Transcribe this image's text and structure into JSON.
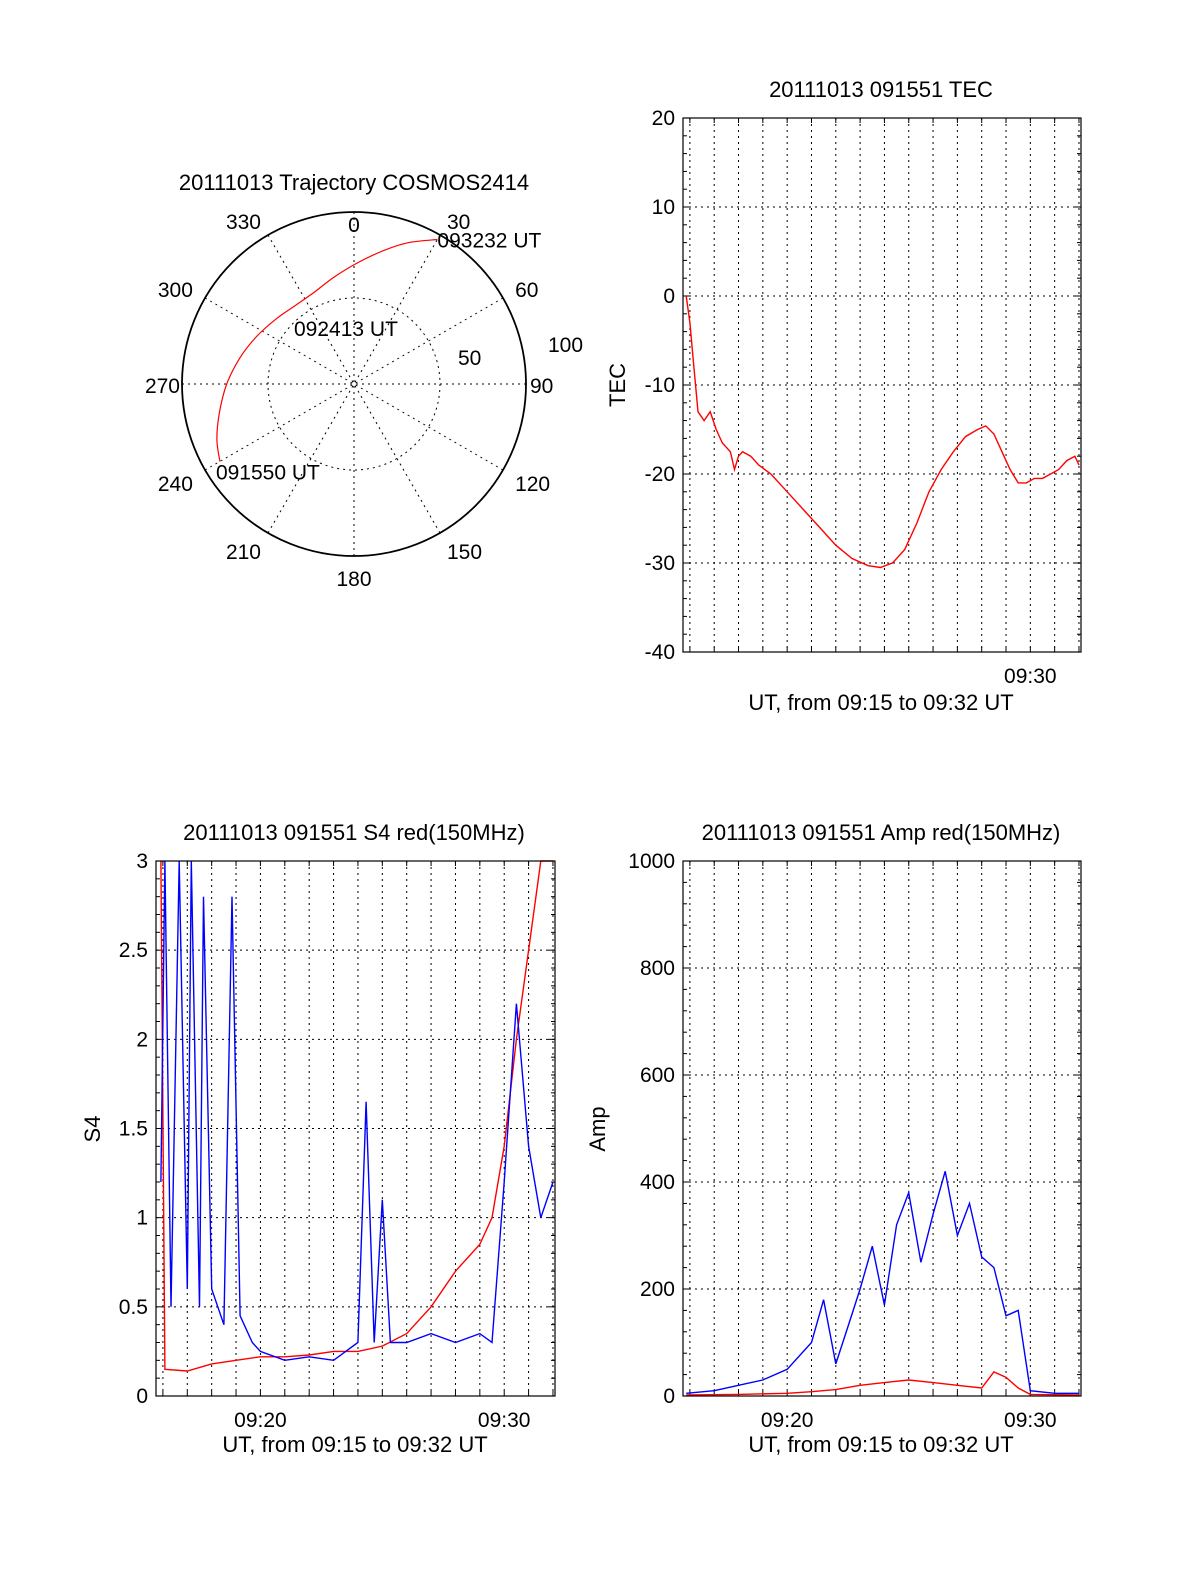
{
  "colors": {
    "red": "#ff0000",
    "blue": "#0000ff",
    "axis": "#000000",
    "background": "#ffffff"
  },
  "chart_data": [
    {
      "type": "polar",
      "title": "20111013 Trajectory COSMOS2414",
      "azimuth_labels": [
        "0",
        "30",
        "60",
        "90",
        "120",
        "150",
        "180",
        "210",
        "240",
        "270",
        "300",
        "330"
      ],
      "radial_labels": [
        "50",
        "100"
      ],
      "rlim": [
        0,
        100
      ],
      "grid": true,
      "trajectory": {
        "color": "#ff0000",
        "start": {
          "azimuth": 240,
          "r": 90,
          "label": "091550 UT"
        },
        "end": {
          "azimuth": 30,
          "r": 97,
          "label": "093232 UT"
        },
        "midpoint_label": "092413 UT",
        "points": [
          [
            240,
            90
          ],
          [
            248,
            86
          ],
          [
            258,
            80
          ],
          [
            270,
            74
          ],
          [
            283,
            68
          ],
          [
            296,
            63
          ],
          [
            310,
            59
          ],
          [
            323,
            57
          ],
          [
            336,
            58
          ],
          [
            349,
            63
          ],
          [
            1,
            70
          ],
          [
            12,
            79
          ],
          [
            21,
            88
          ],
          [
            30,
            97
          ]
        ]
      }
    },
    {
      "type": "line",
      "title": "20111013 091551 TEC",
      "xlabel": "UT, from 09:15 to 09:32 UT",
      "ylabel": "TEC",
      "xlim": [
        "09:15",
        "09:32"
      ],
      "ylim": [
        -40,
        20
      ],
      "yticks": [
        20,
        10,
        0,
        -10,
        -20,
        -30,
        -40
      ],
      "xtick_labels": [
        {
          "t": "09:30",
          "label": "09:30"
        }
      ],
      "grid": true,
      "series": [
        {
          "color": "#ff0000",
          "points": [
            [
              "09:15:51",
              0
            ],
            [
              "09:16:00",
              -3
            ],
            [
              "09:16:10",
              -8
            ],
            [
              "09:16:20",
              -13
            ],
            [
              "09:16:35",
              -14
            ],
            [
              "09:16:50",
              -13
            ],
            [
              "09:17:05",
              -15
            ],
            [
              "09:17:20",
              -16.5
            ],
            [
              "09:17:40",
              -17.5
            ],
            [
              "09:17:50",
              -19.5
            ],
            [
              "09:18:00",
              -18
            ],
            [
              "09:18:10",
              -17.5
            ],
            [
              "09:18:30",
              -18
            ],
            [
              "09:18:50",
              -19
            ],
            [
              "09:19:20",
              -20
            ],
            [
              "09:20:00",
              -22
            ],
            [
              "09:20:40",
              -24
            ],
            [
              "09:21:20",
              -26
            ],
            [
              "09:22:00",
              -28
            ],
            [
              "09:22:40",
              -29.5
            ],
            [
              "09:23:20",
              -30.3
            ],
            [
              "09:23:50",
              -30.5
            ],
            [
              "09:24:20",
              -30
            ],
            [
              "09:24:50",
              -28.5
            ],
            [
              "09:25:20",
              -25.5
            ],
            [
              "09:25:50",
              -22
            ],
            [
              "09:26:20",
              -19.5
            ],
            [
              "09:26:50",
              -17.5
            ],
            [
              "09:27:20",
              -15.8
            ],
            [
              "09:27:50",
              -15
            ],
            [
              "09:28:10",
              -14.6
            ],
            [
              "09:28:30",
              -15.5
            ],
            [
              "09:28:50",
              -17.5
            ],
            [
              "09:29:10",
              -19.5
            ],
            [
              "09:29:30",
              -21
            ],
            [
              "09:29:50",
              -21
            ],
            [
              "09:30:10",
              -20.5
            ],
            [
              "09:30:30",
              -20.5
            ],
            [
              "09:30:50",
              -20
            ],
            [
              "09:31:10",
              -19.5
            ],
            [
              "09:31:30",
              -18.5
            ],
            [
              "09:31:50",
              -18
            ],
            [
              "09:32:00",
              -19
            ]
          ]
        }
      ]
    },
    {
      "type": "line",
      "title": "20111013 091551 S4 red(150MHz)",
      "xlabel": "UT, from 09:15 to 09:32 UT",
      "ylabel": "S4",
      "xlim": [
        "09:15",
        "09:32"
      ],
      "ylim": [
        0,
        3
      ],
      "yticks": [
        0,
        0.5,
        1,
        1.5,
        2,
        2.5,
        3
      ],
      "ytick_labels": [
        "0",
        "0.5",
        "1",
        "1.5",
        "2",
        "2.5",
        "3"
      ],
      "xtick_labels": [
        {
          "t": "09:20",
          "label": "09:20"
        },
        {
          "t": "09:30",
          "label": "09:30"
        }
      ],
      "grid": true,
      "series": [
        {
          "color": "#ff0000",
          "points": [
            [
              "09:15:55",
              3.0
            ],
            [
              "09:16:05",
              0.15
            ],
            [
              "09:17:00",
              0.14
            ],
            [
              "09:18:00",
              0.18
            ],
            [
              "09:19:00",
              0.2
            ],
            [
              "09:20:00",
              0.22
            ],
            [
              "09:21:00",
              0.22
            ],
            [
              "09:22:00",
              0.23
            ],
            [
              "09:23:00",
              0.25
            ],
            [
              "09:24:00",
              0.25
            ],
            [
              "09:25:00",
              0.28
            ],
            [
              "09:26:00",
              0.35
            ],
            [
              "09:27:00",
              0.5
            ],
            [
              "09:28:00",
              0.7
            ],
            [
              "09:29:00",
              0.85
            ],
            [
              "09:29:30",
              1.0
            ],
            [
              "09:30:00",
              1.4
            ],
            [
              "09:30:30",
              2.0
            ],
            [
              "09:31:00",
              2.5
            ],
            [
              "09:31:30",
              3.0
            ],
            [
              "09:32:00",
              3.0
            ]
          ]
        },
        {
          "color": "#0000ff",
          "points": [
            [
              "09:15:55",
              1.2
            ],
            [
              "09:16:05",
              3.0
            ],
            [
              "09:16:20",
              0.5
            ],
            [
              "09:16:40",
              3.0
            ],
            [
              "09:17:00",
              0.6
            ],
            [
              "09:17:10",
              3.0
            ],
            [
              "09:17:30",
              0.5
            ],
            [
              "09:17:40",
              2.8
            ],
            [
              "09:18:00",
              0.6
            ],
            [
              "09:18:30",
              0.4
            ],
            [
              "09:18:50",
              2.8
            ],
            [
              "09:19:10",
              0.45
            ],
            [
              "09:19:40",
              0.3
            ],
            [
              "09:20:00",
              0.25
            ],
            [
              "09:21:00",
              0.2
            ],
            [
              "09:22:00",
              0.22
            ],
            [
              "09:23:00",
              0.2
            ],
            [
              "09:24:00",
              0.3
            ],
            [
              "09:24:20",
              1.65
            ],
            [
              "09:24:40",
              0.3
            ],
            [
              "09:25:00",
              1.1
            ],
            [
              "09:25:20",
              0.3
            ],
            [
              "09:26:00",
              0.3
            ],
            [
              "09:27:00",
              0.35
            ],
            [
              "09:28:00",
              0.3
            ],
            [
              "09:29:00",
              0.35
            ],
            [
              "09:29:30",
              0.3
            ],
            [
              "09:30:00",
              1.2
            ],
            [
              "09:30:30",
              2.2
            ],
            [
              "09:31:00",
              1.4
            ],
            [
              "09:31:30",
              1.0
            ],
            [
              "09:32:00",
              1.2
            ]
          ]
        }
      ]
    },
    {
      "type": "line",
      "title": "20111013 091551 Amp red(150MHz)",
      "xlabel": "UT, from 09:15 to 09:32 UT",
      "ylabel": "Amp",
      "xlim": [
        "09:15",
        "09:32"
      ],
      "ylim": [
        0,
        1000
      ],
      "yticks": [
        0,
        200,
        400,
        600,
        800,
        1000
      ],
      "xtick_labels": [
        {
          "t": "09:20",
          "label": "09:20"
        },
        {
          "t": "09:30",
          "label": "09:30"
        }
      ],
      "grid": true,
      "series": [
        {
          "color": "#0000ff",
          "points": [
            [
              "09:15:51",
              5
            ],
            [
              "09:17:00",
              10
            ],
            [
              "09:18:00",
              20
            ],
            [
              "09:19:00",
              30
            ],
            [
              "09:20:00",
              50
            ],
            [
              "09:21:00",
              100
            ],
            [
              "09:21:30",
              180
            ],
            [
              "09:22:00",
              60
            ],
            [
              "09:22:30",
              130
            ],
            [
              "09:23:00",
              200
            ],
            [
              "09:23:30",
              280
            ],
            [
              "09:24:00",
              170
            ],
            [
              "09:24:30",
              320
            ],
            [
              "09:25:00",
              380
            ],
            [
              "09:25:30",
              250
            ],
            [
              "09:26:00",
              340
            ],
            [
              "09:26:30",
              420
            ],
            [
              "09:27:00",
              300
            ],
            [
              "09:27:30",
              360
            ],
            [
              "09:28:00",
              260
            ],
            [
              "09:28:30",
              240
            ],
            [
              "09:29:00",
              150
            ],
            [
              "09:29:30",
              160
            ],
            [
              "09:30:00",
              10
            ],
            [
              "09:31:00",
              5
            ],
            [
              "09:32:00",
              5
            ]
          ]
        },
        {
          "color": "#ff0000",
          "points": [
            [
              "09:15:51",
              2
            ],
            [
              "09:18:00",
              3
            ],
            [
              "09:20:00",
              5
            ],
            [
              "09:21:00",
              8
            ],
            [
              "09:22:00",
              12
            ],
            [
              "09:23:00",
              20
            ],
            [
              "09:24:00",
              25
            ],
            [
              "09:25:00",
              30
            ],
            [
              "09:26:00",
              25
            ],
            [
              "09:27:00",
              20
            ],
            [
              "09:28:00",
              15
            ],
            [
              "09:28:30",
              45
            ],
            [
              "09:29:00",
              35
            ],
            [
              "09:29:30",
              15
            ],
            [
              "09:30:00",
              3
            ],
            [
              "09:32:00",
              2
            ]
          ]
        }
      ]
    }
  ]
}
